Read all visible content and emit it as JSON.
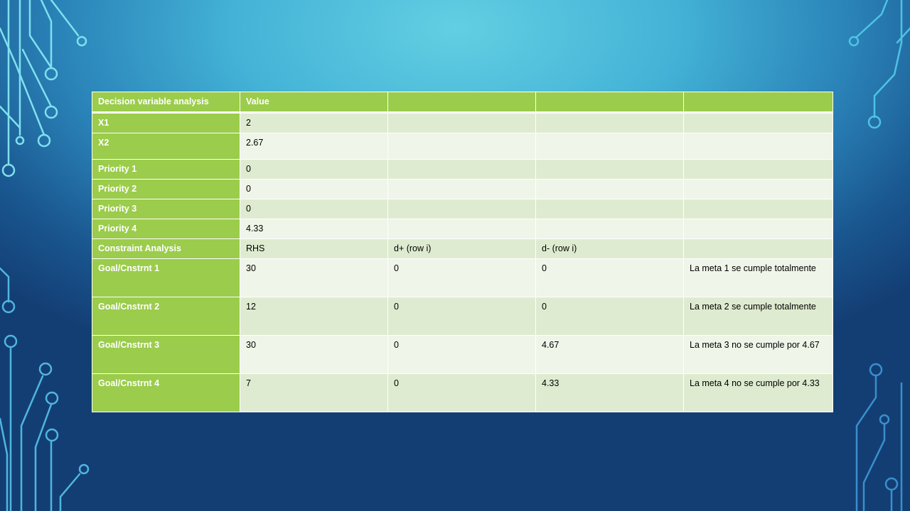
{
  "table": {
    "header": [
      "Decision variable analysis",
      "Value",
      "",
      "",
      ""
    ],
    "rows": [
      [
        "X1",
        "2",
        "",
        "",
        ""
      ],
      [
        "X2",
        "2.67",
        "",
        "",
        ""
      ],
      [
        "Priority 1",
        "0",
        "",
        "",
        ""
      ],
      [
        "Priority 2",
        "0",
        "",
        "",
        ""
      ],
      [
        "Priority 3",
        "0",
        "",
        "",
        ""
      ],
      [
        "Priority 4",
        "4.33",
        "",
        "",
        ""
      ],
      [
        "Constraint Analysis",
        "RHS",
        "d+ (row i)",
        "d- (row i)",
        ""
      ],
      [
        "Goal/Cnstrnt 1",
        "30",
        "0",
        "0",
        "La meta 1 se cumple totalmente"
      ],
      [
        "Goal/Cnstrnt 2",
        "12",
        "0",
        "0",
        "La meta 2 se cumple totalmente"
      ],
      [
        "Goal/Cnstrnt 3",
        "30",
        "0",
        "4.67",
        "La meta 3 no se cumple por 4.67"
      ],
      [
        "Goal/Cnstrnt 4",
        "7",
        "0",
        "4.33",
        "La meta 4 no se cumple por 4.33"
      ]
    ]
  },
  "colors": {
    "header_green": "#9bcc4c",
    "band_dark": "#dfebd0",
    "band_light": "#eff5e8"
  }
}
